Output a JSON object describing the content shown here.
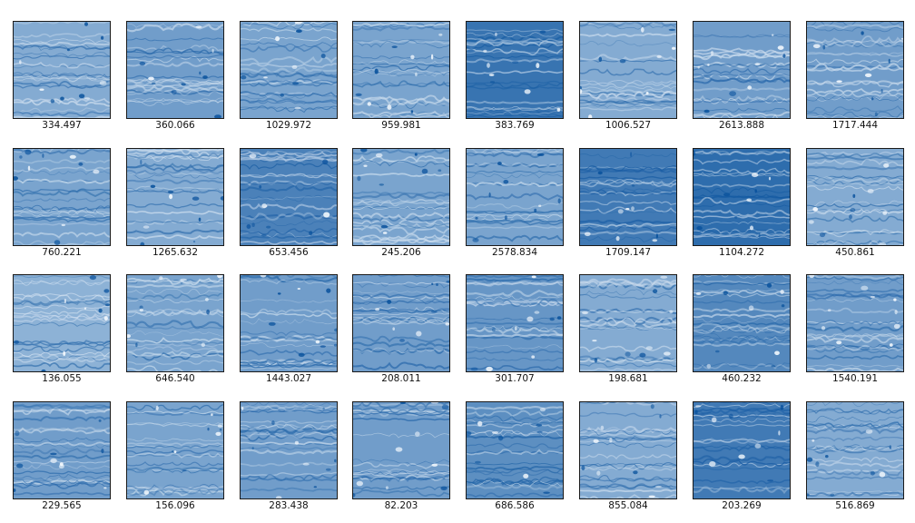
{
  "palette": {
    "dark": "#08519c",
    "mid": "#4292c6",
    "base": "#6baed6",
    "light": "#c6dbef",
    "white": "#f7fbff"
  },
  "tiles": [
    {
      "value": "334.497",
      "tone": 0.35
    },
    {
      "value": "360.066",
      "tone": 0.45
    },
    {
      "value": "1029.972",
      "tone": 0.4
    },
    {
      "value": "959.981",
      "tone": 0.4
    },
    {
      "value": "383.769",
      "tone": 0.75
    },
    {
      "value": "1006.527",
      "tone": 0.35
    },
    {
      "value": "2613.888",
      "tone": 0.45
    },
    {
      "value": "1717.444",
      "tone": 0.45
    },
    {
      "value": "760.221",
      "tone": 0.4
    },
    {
      "value": "1265.632",
      "tone": 0.35
    },
    {
      "value": "653.456",
      "tone": 0.65
    },
    {
      "value": "245.206",
      "tone": 0.4
    },
    {
      "value": "2578.834",
      "tone": 0.4
    },
    {
      "value": "1709.147",
      "tone": 0.7
    },
    {
      "value": "1104.272",
      "tone": 0.8
    },
    {
      "value": "450.861",
      "tone": 0.35
    },
    {
      "value": "136.055",
      "tone": 0.3
    },
    {
      "value": "646.540",
      "tone": 0.4
    },
    {
      "value": "1443.027",
      "tone": 0.45
    },
    {
      "value": "208.011",
      "tone": 0.45
    },
    {
      "value": "301.707",
      "tone": 0.5
    },
    {
      "value": "198.681",
      "tone": 0.35
    },
    {
      "value": "460.232",
      "tone": 0.6
    },
    {
      "value": "1540.191",
      "tone": 0.45
    },
    {
      "value": "229.565",
      "tone": 0.45
    },
    {
      "value": "156.096",
      "tone": 0.4
    },
    {
      "value": "283.438",
      "tone": 0.45
    },
    {
      "value": "82.203",
      "tone": 0.45
    },
    {
      "value": "686.586",
      "tone": 0.55
    },
    {
      "value": "855.084",
      "tone": 0.35
    },
    {
      "value": "203.269",
      "tone": 0.7
    },
    {
      "value": "516.869",
      "tone": 0.35
    }
  ]
}
